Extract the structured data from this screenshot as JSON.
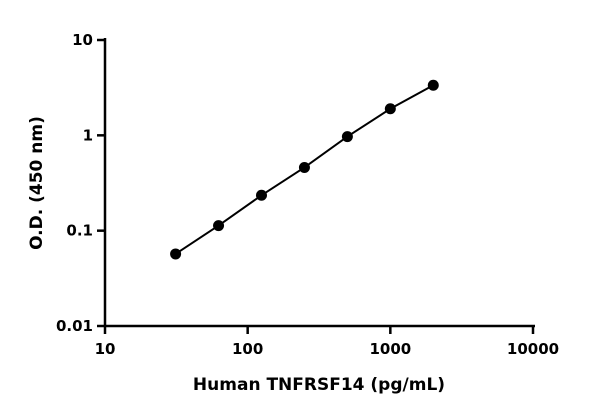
{
  "chart_data": {
    "type": "line",
    "x_label": "Human TNFRSF14 (pg/mL)",
    "y_label": "O.D. (450 nm)",
    "x": [
      31.25,
      62.5,
      125,
      250,
      500,
      1000,
      2000
    ],
    "values": [
      0.057,
      0.113,
      0.235,
      0.46,
      0.97,
      1.9,
      3.35
    ],
    "color": "#000000",
    "markers": true,
    "xscale": "log",
    "yscale": "log",
    "xlim": [
      10,
      10000
    ],
    "xticks": [
      10,
      100,
      1000,
      10000
    ],
    "ylim": [
      0.01,
      10
    ],
    "yticks": [
      0.01,
      0.1,
      1,
      10
    ]
  }
}
